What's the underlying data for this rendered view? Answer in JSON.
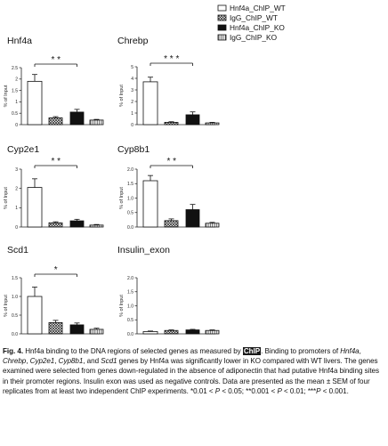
{
  "legend": [
    {
      "label": "Hnf4a_ChIP_WT",
      "pattern": "white"
    },
    {
      "label": "IgG_ChIP_WT",
      "pattern": "crosshatch"
    },
    {
      "label": "Hnf4a_ChIP_KO",
      "pattern": "black"
    },
    {
      "label": "IgG_ChIP_KO",
      "pattern": "stripes"
    }
  ],
  "colors": {
    "bar_outline": "#111111",
    "bar_black": "#111111",
    "bar_white": "#ffffff",
    "text": "#111111"
  },
  "chart_data": [
    {
      "type": "bar",
      "title": "Hnf4a",
      "ylabel": "% of Input",
      "ylim": [
        0,
        2.5
      ],
      "yticks": [
        "0",
        "0.5",
        "1",
        "1.5",
        "2",
        "2.5"
      ],
      "yticks_values": [
        0,
        0.5,
        1,
        1.5,
        2,
        2.5
      ],
      "series": [
        {
          "name": "Hnf4a_ChIP_WT",
          "values": [
            1.9
          ]
        },
        {
          "name": "IgG_ChIP_WT",
          "values": [
            0.3
          ]
        },
        {
          "name": "Hnf4a_ChIP_KO",
          "values": [
            0.55
          ]
        },
        {
          "name": "IgG_ChIP_KO",
          "values": [
            0.2
          ]
        }
      ],
      "errors": [
        0.3,
        0.05,
        0.12,
        0.03
      ],
      "significance": "* *"
    },
    {
      "type": "bar",
      "title": "Chrebp",
      "ylabel": "% of Input",
      "ylim": [
        0,
        5
      ],
      "yticks": [
        "0",
        "1",
        "2",
        "3",
        "4",
        "5"
      ],
      "yticks_values": [
        0,
        1,
        2,
        3,
        4,
        5
      ],
      "series": [
        {
          "name": "Hnf4a_ChIP_WT",
          "values": [
            3.7
          ]
        },
        {
          "name": "IgG_ChIP_WT",
          "values": [
            0.2
          ]
        },
        {
          "name": "Hnf4a_ChIP_KO",
          "values": [
            0.85
          ]
        },
        {
          "name": "IgG_ChIP_KO",
          "values": [
            0.15
          ]
        }
      ],
      "errors": [
        0.4,
        0.05,
        0.25,
        0.05
      ],
      "significance": "* * *"
    },
    {
      "type": "bar",
      "title": "Cyp2e1",
      "ylabel": "% of Input",
      "ylim": [
        0,
        3
      ],
      "yticks": [
        "0",
        "1",
        "2",
        "3"
      ],
      "yticks_values": [
        0,
        1,
        2,
        3
      ],
      "series": [
        {
          "name": "Hnf4a_ChIP_WT",
          "values": [
            2.05
          ]
        },
        {
          "name": "IgG_ChIP_WT",
          "values": [
            0.22
          ]
        },
        {
          "name": "Hnf4a_ChIP_KO",
          "values": [
            0.32
          ]
        },
        {
          "name": "IgG_ChIP_KO",
          "values": [
            0.1
          ]
        }
      ],
      "errors": [
        0.45,
        0.05,
        0.08,
        0.03
      ],
      "significance": "* *"
    },
    {
      "type": "bar",
      "title": "Cyp8b1",
      "ylabel": "% of Input",
      "ylim": [
        0,
        2.0
      ],
      "yticks": [
        "0.0",
        "0.5",
        "1.0",
        "1.5",
        "2.0"
      ],
      "yticks_values": [
        0,
        0.5,
        1,
        1.5,
        2
      ],
      "series": [
        {
          "name": "Hnf4a_ChIP_WT",
          "values": [
            1.6
          ]
        },
        {
          "name": "IgG_ChIP_WT",
          "values": [
            0.22
          ]
        },
        {
          "name": "Hnf4a_ChIP_KO",
          "values": [
            0.6
          ]
        },
        {
          "name": "IgG_ChIP_KO",
          "values": [
            0.13
          ]
        }
      ],
      "errors": [
        0.18,
        0.06,
        0.18,
        0.03
      ],
      "significance": "* *"
    },
    {
      "type": "bar",
      "title": "Scd1",
      "ylabel": "% of Input",
      "ylim": [
        0,
        1.5
      ],
      "yticks": [
        "0.0",
        "0.5",
        "1.0",
        "1.5"
      ],
      "yticks_values": [
        0,
        0.5,
        1,
        1.5
      ],
      "series": [
        {
          "name": "Hnf4a_ChIP_WT",
          "values": [
            1.0
          ]
        },
        {
          "name": "IgG_ChIP_WT",
          "values": [
            0.3
          ]
        },
        {
          "name": "Hnf4a_ChIP_KO",
          "values": [
            0.24
          ]
        },
        {
          "name": "IgG_ChIP_KO",
          "values": [
            0.12
          ]
        }
      ],
      "errors": [
        0.25,
        0.06,
        0.05,
        0.03
      ],
      "significance": "*"
    },
    {
      "type": "bar",
      "title": "Insulin_exon",
      "ylabel": "% of Input",
      "ylim": [
        0,
        2.0
      ],
      "yticks": [
        "0.0",
        "0.5",
        "1.0",
        "1.5",
        "2.0"
      ],
      "yticks_values": [
        0,
        0.5,
        1,
        1.5,
        2
      ],
      "series": [
        {
          "name": "Hnf4a_ChIP_WT",
          "values": [
            0.08
          ]
        },
        {
          "name": "IgG_ChIP_WT",
          "values": [
            0.12
          ]
        },
        {
          "name": "Hnf4a_ChIP_KO",
          "values": [
            0.14
          ]
        },
        {
          "name": "IgG_ChIP_KO",
          "values": [
            0.12
          ]
        }
      ],
      "errors": [
        0.02,
        0.02,
        0.02,
        0.02
      ],
      "significance": ""
    }
  ],
  "caption": {
    "fig_label": "Fig. 4.",
    "t1": "   Hnf4a binding to the DNA regions of selected genes as measured by ",
    "chip_hl": "ChIP",
    "t2": ". Binding to promoters of ",
    "g1": "Hnf4a",
    "t3": ", ",
    "g2": "Chrebp",
    "t4": ", ",
    "g3": "Cyp2e1",
    "t5": ", ",
    "g4": "Cyp8b1",
    "t6": ", and ",
    "g5": "Scd1",
    "t7": " genes by Hnf4a was significantly lower in KO compared with WT livers. The genes examined were selected from genes down-regulated in the absence of adiponectin that had putative Hnf4a binding sites in their promoter regions. Insulin exon was used as negative controls. Data are presented as the mean ± SEM of four replicates from at least two independent ChIP experiments. *0.01 < ",
    "p1": "P",
    "t8": " < 0.05; **0.001 < ",
    "p2": "P",
    "t9": " < 0.01; ***",
    "p3": "P",
    "t10": " < 0.001."
  }
}
